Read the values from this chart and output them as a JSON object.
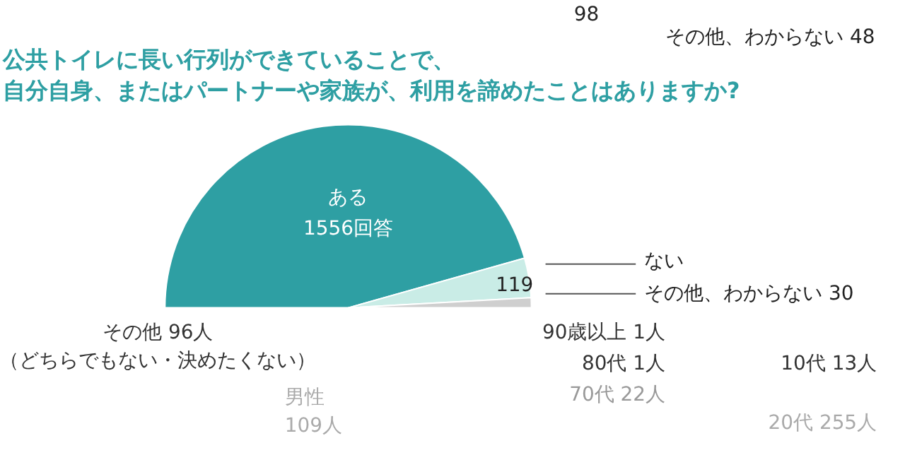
{
  "chart_data": [
    {
      "type": "other",
      "annotations": [
        "98",
        "その他、わからない 48"
      ]
    },
    {
      "type": "pie",
      "title": "公共トイレに長い行列ができていることで、自分自身、またはパートナーや家族が、利用を諦めたことはありますか?",
      "categories": [
        "ある",
        "ない",
        "その他、わからない"
      ],
      "values": [
        1556,
        119,
        30
      ],
      "value_labels": [
        "1556回答",
        "119",
        "30"
      ],
      "colors": [
        "#2e9fa3",
        "#c9ece6",
        "#cfcfcf"
      ]
    },
    {
      "type": "other",
      "annotations": [
        "その他 96人",
        "（どちらでもない・決めたくない）",
        "男性",
        "109人"
      ]
    },
    {
      "type": "other",
      "annotations": [
        "90歳以上 1人",
        "80代 1人",
        "70代 22人",
        "10代 13人",
        "20代 255人"
      ]
    }
  ]
}
